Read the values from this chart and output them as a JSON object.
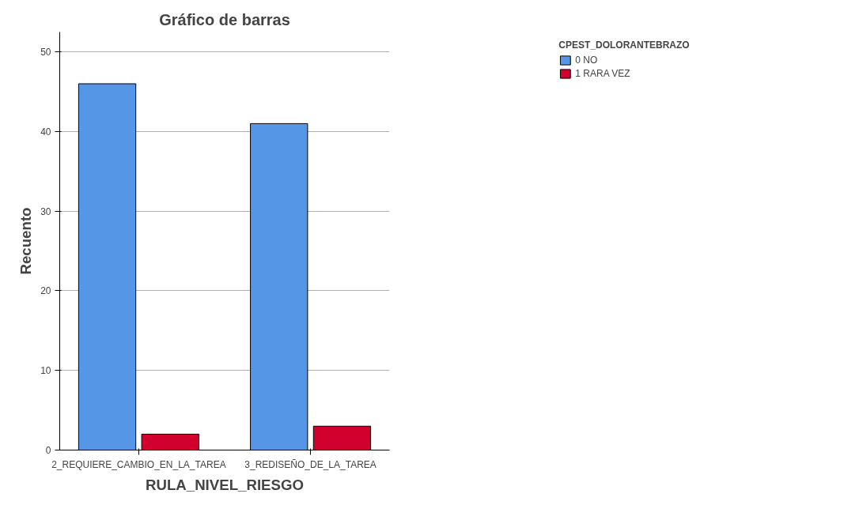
{
  "chart_data": {
    "type": "bar",
    "title": "Gráfico de barras",
    "xlabel": "RULA_NIVEL_RIESGO",
    "ylabel": "Recuento",
    "legend_title": "CPEST_DOLORANTEBRAZO",
    "categories": [
      "2_REQUIERE_CAMBIO_EN_LA_TAREA",
      "3_REDISEÑO_DE_LA_TAREA"
    ],
    "series": [
      {
        "name": "0 NO",
        "color": "#5596e6",
        "values": [
          46,
          41
        ]
      },
      {
        "name": "1 RARA VEZ",
        "color": "#d1002c",
        "values": [
          2,
          3
        ]
      }
    ],
    "ylim": [
      0,
      52.5
    ],
    "yticks": [
      0,
      10,
      20,
      30,
      40,
      50
    ],
    "grid": "y",
    "legend": "top right"
  }
}
